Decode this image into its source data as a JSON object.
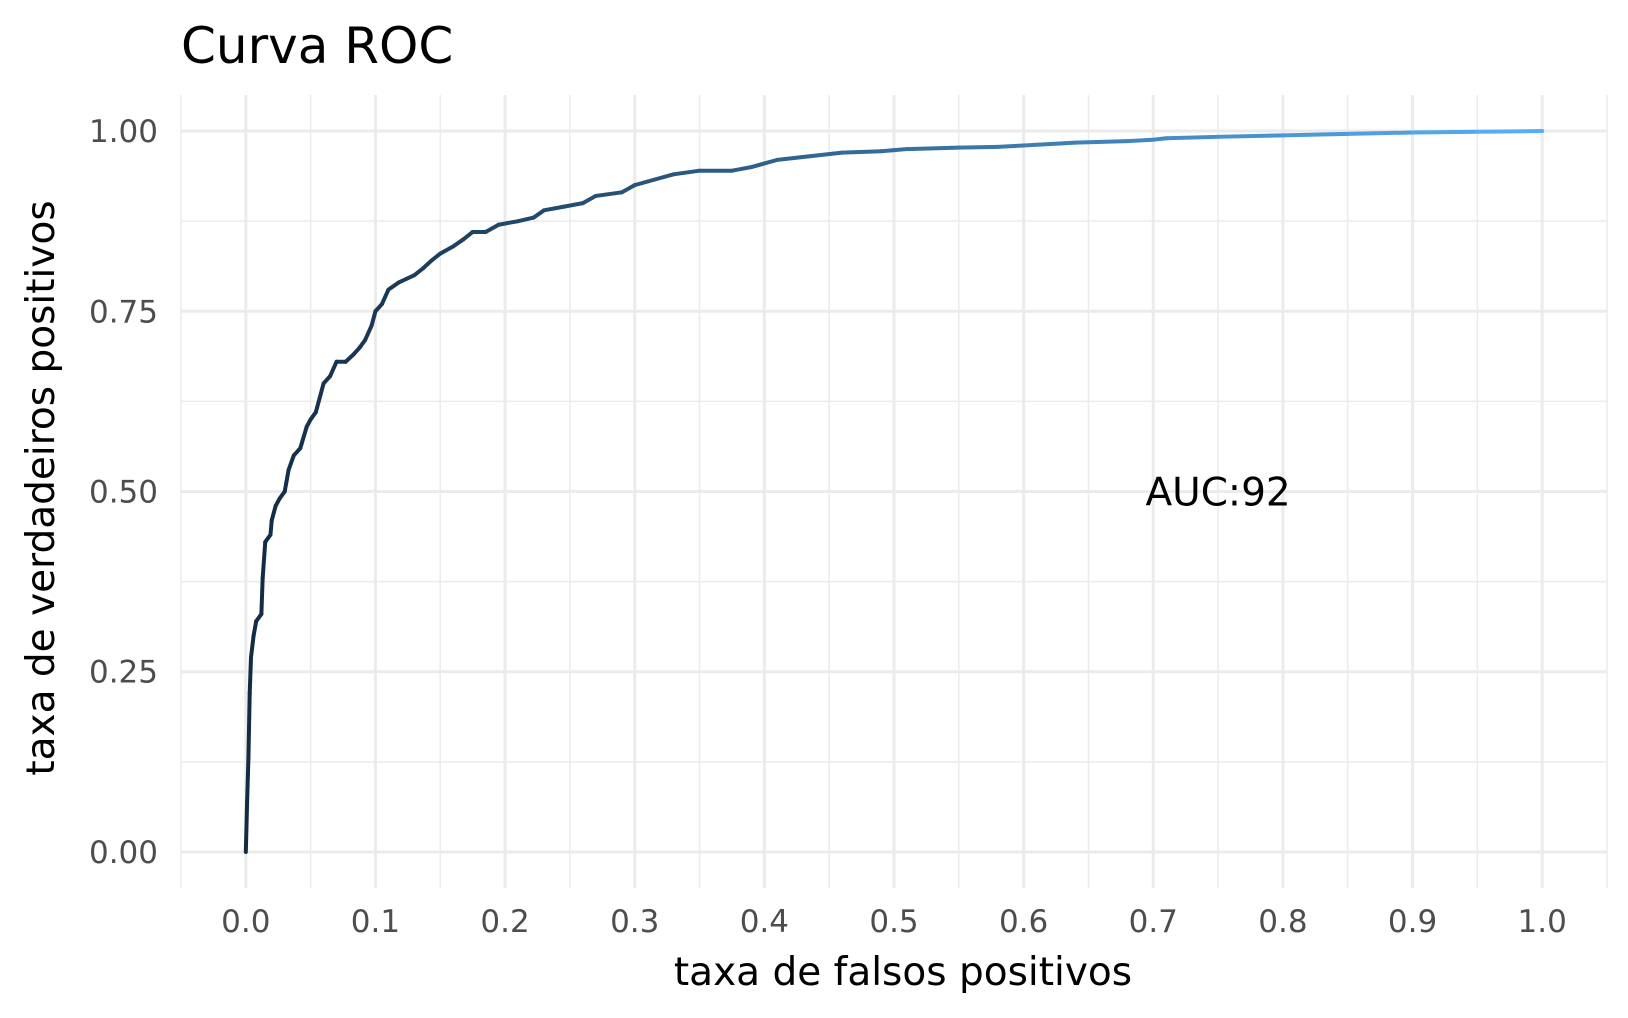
{
  "chart_data": {
    "type": "line",
    "title": "Curva ROC",
    "xlabel": "taxa de falsos positivos",
    "ylabel": "taxa de verdadeiros positivos",
    "xlim": [
      -0.05,
      1.05
    ],
    "ylim": [
      -0.05,
      1.05
    ],
    "x_ticks": [
      "0.0",
      "0.1",
      "0.2",
      "0.3",
      "0.4",
      "0.5",
      "0.6",
      "0.7",
      "0.8",
      "0.9",
      "1.0"
    ],
    "y_ticks": [
      "0.00",
      "0.25",
      "0.50",
      "0.75",
      "1.00"
    ],
    "grid": true,
    "color_gradient": [
      "#132b43",
      "#56b1f7"
    ],
    "annotation": {
      "text": "AUC:92",
      "x": 0.75,
      "y": 0.5
    },
    "series": [
      {
        "points": [
          [
            0.0,
            0.0
          ],
          [
            0.001,
            0.07
          ],
          [
            0.002,
            0.13
          ],
          [
            0.003,
            0.22
          ],
          [
            0.004,
            0.27
          ],
          [
            0.006,
            0.3
          ],
          [
            0.008,
            0.32
          ],
          [
            0.012,
            0.33
          ],
          [
            0.013,
            0.38
          ],
          [
            0.015,
            0.43
          ],
          [
            0.019,
            0.44
          ],
          [
            0.02,
            0.46
          ],
          [
            0.023,
            0.48
          ],
          [
            0.026,
            0.49
          ],
          [
            0.03,
            0.5
          ],
          [
            0.033,
            0.53
          ],
          [
            0.037,
            0.55
          ],
          [
            0.042,
            0.56
          ],
          [
            0.047,
            0.59
          ],
          [
            0.05,
            0.6
          ],
          [
            0.054,
            0.61
          ],
          [
            0.057,
            0.63
          ],
          [
            0.06,
            0.65
          ],
          [
            0.065,
            0.66
          ],
          [
            0.07,
            0.68
          ],
          [
            0.077,
            0.68
          ],
          [
            0.083,
            0.69
          ],
          [
            0.088,
            0.7
          ],
          [
            0.092,
            0.71
          ],
          [
            0.097,
            0.73
          ],
          [
            0.1,
            0.75
          ],
          [
            0.105,
            0.76
          ],
          [
            0.11,
            0.78
          ],
          [
            0.118,
            0.79
          ],
          [
            0.13,
            0.8
          ],
          [
            0.137,
            0.81
          ],
          [
            0.143,
            0.82
          ],
          [
            0.15,
            0.83
          ],
          [
            0.16,
            0.84
          ],
          [
            0.168,
            0.85
          ],
          [
            0.175,
            0.86
          ],
          [
            0.185,
            0.86
          ],
          [
            0.195,
            0.87
          ],
          [
            0.21,
            0.875
          ],
          [
            0.222,
            0.88
          ],
          [
            0.23,
            0.89
          ],
          [
            0.245,
            0.895
          ],
          [
            0.26,
            0.9
          ],
          [
            0.27,
            0.91
          ],
          [
            0.29,
            0.915
          ],
          [
            0.3,
            0.925
          ],
          [
            0.31,
            0.93
          ],
          [
            0.33,
            0.94
          ],
          [
            0.35,
            0.945
          ],
          [
            0.375,
            0.945
          ],
          [
            0.39,
            0.95
          ],
          [
            0.4,
            0.955
          ],
          [
            0.41,
            0.96
          ],
          [
            0.435,
            0.965
          ],
          [
            0.46,
            0.97
          ],
          [
            0.49,
            0.972
          ],
          [
            0.51,
            0.975
          ],
          [
            0.55,
            0.977
          ],
          [
            0.58,
            0.978
          ],
          [
            0.6,
            0.98
          ],
          [
            0.64,
            0.984
          ],
          [
            0.68,
            0.986
          ],
          [
            0.7,
            0.988
          ],
          [
            0.71,
            0.99
          ],
          [
            0.75,
            0.992
          ],
          [
            0.8,
            0.994
          ],
          [
            0.85,
            0.996
          ],
          [
            0.9,
            0.998
          ],
          [
            0.95,
            0.999
          ],
          [
            1.0,
            1.0
          ]
        ]
      }
    ]
  }
}
